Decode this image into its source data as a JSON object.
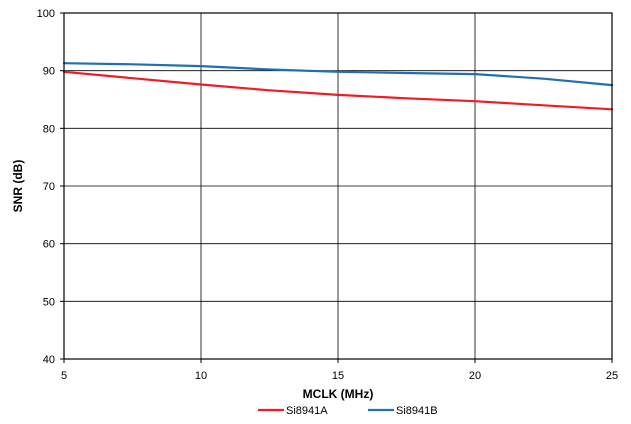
{
  "chart_data": {
    "type": "line",
    "title": "",
    "xlabel": "MCLK (MHz)",
    "ylabel": "SNR (dB)",
    "xlim": [
      5,
      25
    ],
    "ylim": [
      40,
      100
    ],
    "xticks": [
      5,
      10,
      15,
      20,
      25
    ],
    "yticks": [
      40,
      50,
      60,
      70,
      80,
      90,
      100
    ],
    "grid": true,
    "legend_position": "bottom",
    "series": [
      {
        "name": "Si8941A",
        "color": "#ee1c25",
        "x": [
          5,
          7.5,
          10,
          12.5,
          15,
          17.5,
          20,
          22.5,
          25
        ],
        "y": [
          89.8,
          88.7,
          87.6,
          86.6,
          85.8,
          85.2,
          84.7,
          84.0,
          83.3
        ]
      },
      {
        "name": "Si8941B",
        "color": "#1f6fb2",
        "x": [
          5,
          7.5,
          10,
          12.5,
          15,
          17.5,
          20,
          22.5,
          25
        ],
        "y": [
          91.3,
          91.1,
          90.8,
          90.2,
          89.8,
          89.6,
          89.4,
          88.6,
          87.5
        ]
      }
    ]
  }
}
